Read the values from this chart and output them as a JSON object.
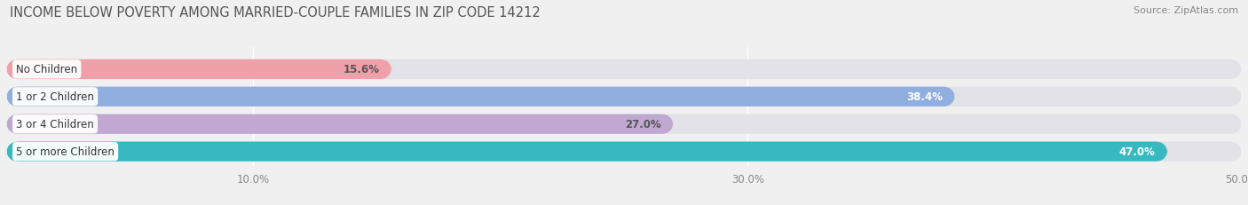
{
  "title": "INCOME BELOW POVERTY AMONG MARRIED-COUPLE FAMILIES IN ZIP CODE 14212",
  "source": "Source: ZipAtlas.com",
  "categories": [
    "No Children",
    "1 or 2 Children",
    "3 or 4 Children",
    "5 or more Children"
  ],
  "values": [
    15.6,
    38.4,
    27.0,
    47.0
  ],
  "bar_colors": [
    "#f0a0a8",
    "#90aede",
    "#c0a8d0",
    "#38b8c0"
  ],
  "value_text_colors": [
    "#555555",
    "#ffffff",
    "#555555",
    "#ffffff"
  ],
  "xlim": [
    0,
    50
  ],
  "xmin": 0,
  "xmax": 50,
  "xticks": [
    10,
    30,
    50
  ],
  "xtick_labels": [
    "10.0%",
    "30.0%",
    "50.0%"
  ],
  "background_color": "#f0f0f0",
  "bar_bg_color": "#e2e2e8",
  "title_fontsize": 10.5,
  "source_fontsize": 8,
  "label_fontsize": 8.5,
  "value_fontsize": 8.5
}
